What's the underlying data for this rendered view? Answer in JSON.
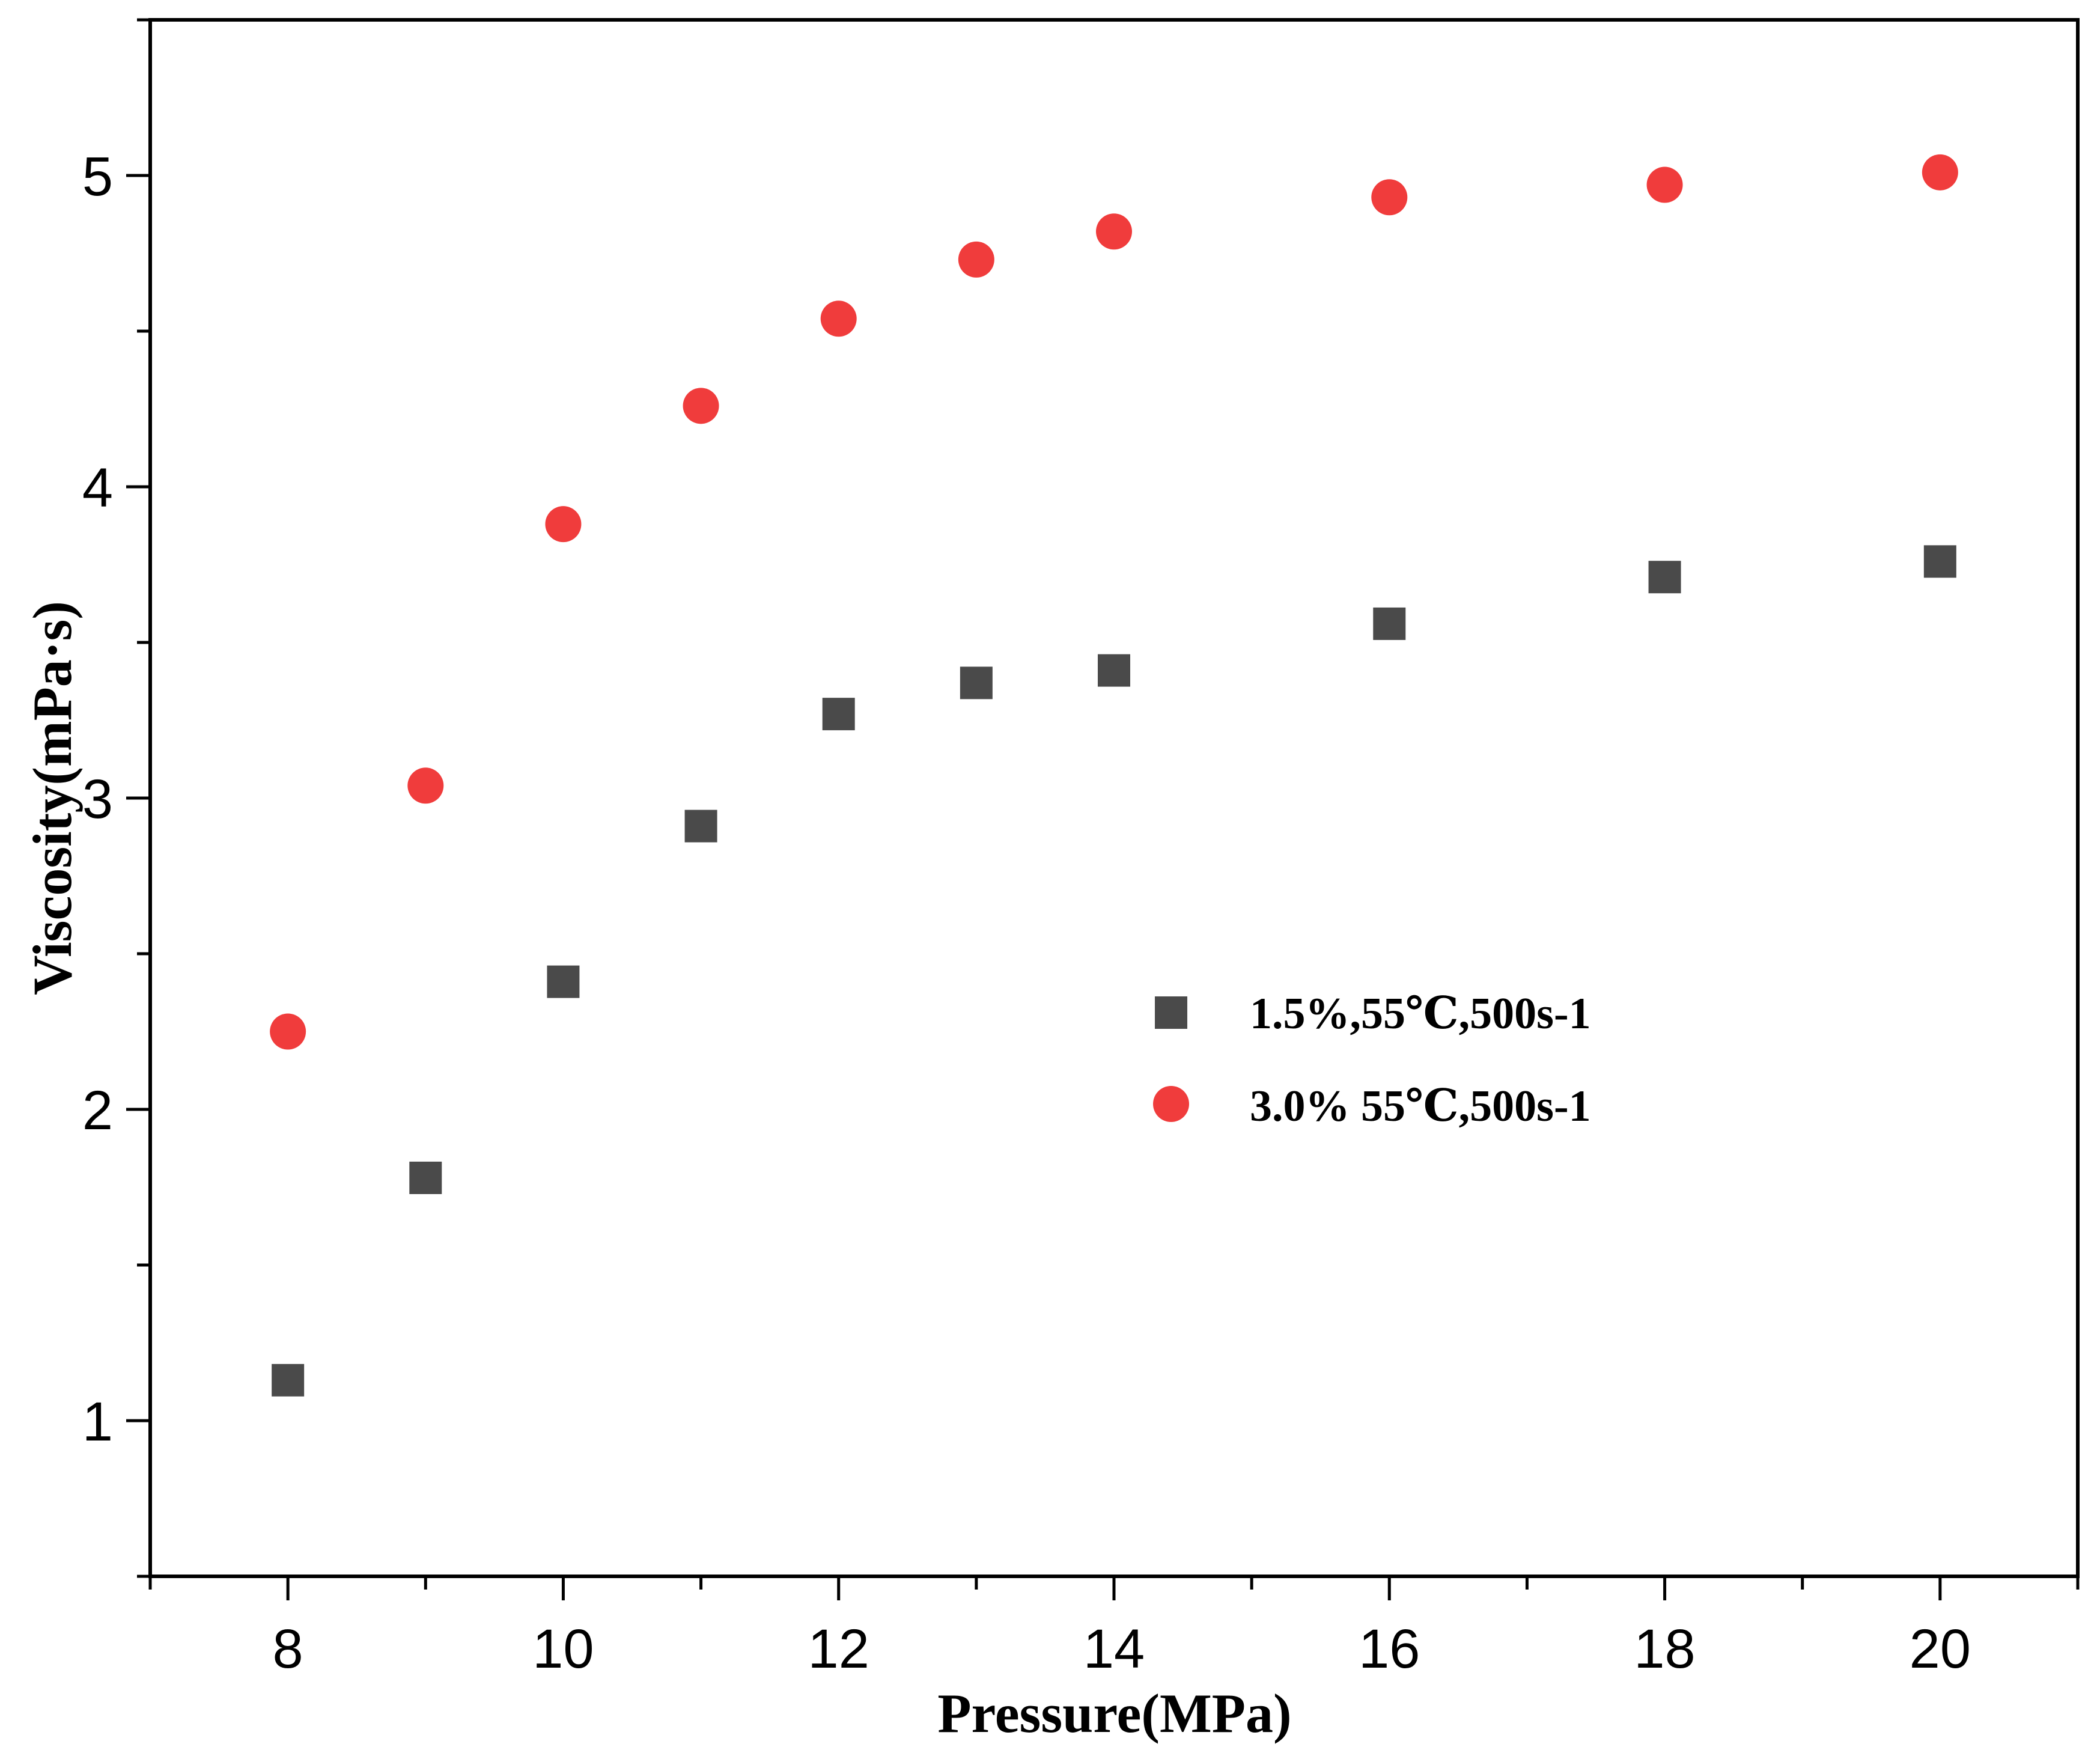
{
  "chart_data": {
    "type": "scatter",
    "xlabel": "Pressure(MPa)",
    "ylabel": "Viscosity(mPa·s)",
    "xlim": [
      7,
      21
    ],
    "ylim": [
      0.5,
      5.5
    ],
    "x_major_ticks": [
      8,
      10,
      12,
      14,
      16,
      18,
      20
    ],
    "x_minor_ticks": [
      7,
      9,
      11,
      13,
      15,
      17,
      19,
      21
    ],
    "y_major_ticks": [
      1,
      2,
      3,
      4,
      5
    ],
    "y_minor_ticks": [
      0.5,
      1.5,
      2.5,
      3.5,
      4.5,
      5.5
    ],
    "x_tick_labels": [
      "8",
      "10",
      "12",
      "14",
      "16",
      "18",
      "20"
    ],
    "y_tick_labels": [
      "1",
      "2",
      "3",
      "4",
      "5"
    ],
    "legend_position": "center-right",
    "grid": false,
    "series": [
      {
        "name": "1.5%,55℃,500s-1",
        "marker": "square",
        "color": "#4a4a4a",
        "x": [
          8,
          9,
          10,
          11,
          12,
          13,
          14,
          16,
          18,
          20
        ],
        "y": [
          1.13,
          1.78,
          2.41,
          2.91,
          3.27,
          3.37,
          3.41,
          3.56,
          3.71,
          3.76
        ]
      },
      {
        "name": "3.0% 55℃,500s-1",
        "marker": "circle",
        "color": "#f03c3c",
        "x": [
          8,
          9,
          10,
          11,
          12,
          13,
          14,
          16,
          18,
          20
        ],
        "y": [
          2.25,
          3.04,
          3.88,
          4.26,
          4.54,
          4.73,
          4.82,
          4.93,
          4.97,
          5.01
        ]
      }
    ]
  }
}
